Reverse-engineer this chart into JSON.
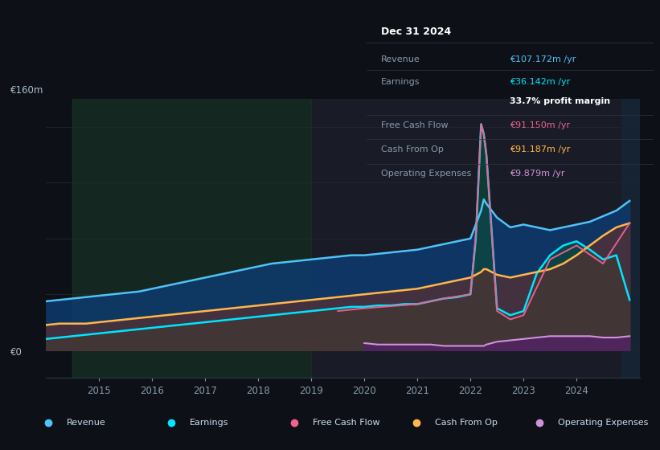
{
  "bg_color": "#0d1117",
  "ylabel_top": "€160m",
  "ylabel_bottom": "€0",
  "info_box": {
    "title": "Dec 31 2024",
    "rows": [
      {
        "label": "Revenue",
        "value": "€107.172m /yr",
        "color": "#4fc3f7"
      },
      {
        "label": "Earnings",
        "value": "€36.142m /yr",
        "color": "#00e5ff"
      },
      {
        "label": "",
        "value": "33.7% profit margin",
        "color": "#ffffff"
      },
      {
        "label": "Free Cash Flow",
        "value": "€91.150m /yr",
        "color": "#f06292"
      },
      {
        "label": "Cash From Op",
        "value": "€91.187m /yr",
        "color": "#ffb74d"
      },
      {
        "label": "Operating Expenses",
        "value": "€9.879m /yr",
        "color": "#ce93d8"
      }
    ]
  },
  "legend": [
    {
      "label": "Revenue",
      "color": "#4fc3f7"
    },
    {
      "label": "Earnings",
      "color": "#00e5ff"
    },
    {
      "label": "Free Cash Flow",
      "color": "#f06292"
    },
    {
      "label": "Cash From Op",
      "color": "#ffb74d"
    },
    {
      "label": "Operating Expenses",
      "color": "#ce93d8"
    }
  ],
  "years": [
    2014.0,
    2014.25,
    2014.5,
    2014.75,
    2015.0,
    2015.25,
    2015.5,
    2015.75,
    2016.0,
    2016.25,
    2016.5,
    2016.75,
    2017.0,
    2017.25,
    2017.5,
    2017.75,
    2018.0,
    2018.25,
    2018.5,
    2018.75,
    2019.0,
    2019.25,
    2019.5,
    2019.75,
    2020.0,
    2020.25,
    2020.5,
    2020.75,
    2021.0,
    2021.25,
    2021.5,
    2021.75,
    2022.0,
    2022.1,
    2022.2,
    2022.25,
    2022.3,
    2022.5,
    2022.75,
    2023.0,
    2023.25,
    2023.5,
    2023.75,
    2024.0,
    2024.25,
    2024.5,
    2024.75,
    2025.0
  ],
  "revenue": [
    35,
    36,
    37,
    38,
    39,
    40,
    41,
    42,
    44,
    46,
    48,
    50,
    52,
    54,
    56,
    58,
    60,
    62,
    63,
    64,
    65,
    66,
    67,
    68,
    68,
    69,
    70,
    71,
    72,
    74,
    76,
    78,
    80,
    90,
    100,
    108,
    105,
    95,
    88,
    90,
    88,
    86,
    88,
    90,
    92,
    96,
    100,
    107
  ],
  "earnings": [
    8,
    9,
    10,
    11,
    12,
    13,
    14,
    15,
    16,
    17,
    18,
    19,
    20,
    21,
    22,
    23,
    24,
    25,
    26,
    27,
    28,
    29,
    30,
    31,
    31,
    32,
    32,
    33,
    33,
    35,
    37,
    38,
    40,
    80,
    162,
    155,
    140,
    30,
    25,
    28,
    55,
    68,
    75,
    78,
    72,
    65,
    68,
    36
  ],
  "cash_from_op": [
    18,
    19,
    19,
    19,
    20,
    21,
    22,
    23,
    24,
    25,
    26,
    27,
    28,
    29,
    30,
    31,
    32,
    33,
    34,
    35,
    36,
    37,
    38,
    39,
    40,
    41,
    42,
    43,
    44,
    46,
    48,
    50,
    52,
    54,
    56,
    58,
    58,
    54,
    52,
    54,
    56,
    58,
    62,
    68,
    75,
    82,
    88,
    91
  ],
  "op_expenses": [
    0,
    0,
    0,
    0,
    0,
    0,
    0,
    0,
    0,
    0,
    0,
    0,
    0,
    0,
    0,
    0,
    0,
    0,
    0,
    0,
    0,
    0,
    0,
    0,
    -5,
    -4,
    -4,
    -4,
    -4,
    -4,
    -3,
    -3,
    -3,
    -3,
    -3,
    -3,
    -4,
    -6,
    -7,
    -8,
    -9,
    -10,
    -10,
    -10,
    -10,
    -9,
    -9,
    -10
  ],
  "grid_color": "#1e2a3a",
  "grid_lines_y": [
    0,
    40,
    80,
    120,
    160
  ],
  "xlim": [
    2014.0,
    2025.2
  ],
  "ylim": [
    -20,
    180
  ],
  "xticks": [
    2015,
    2016,
    2017,
    2018,
    2019,
    2020,
    2021,
    2022,
    2023,
    2024
  ]
}
